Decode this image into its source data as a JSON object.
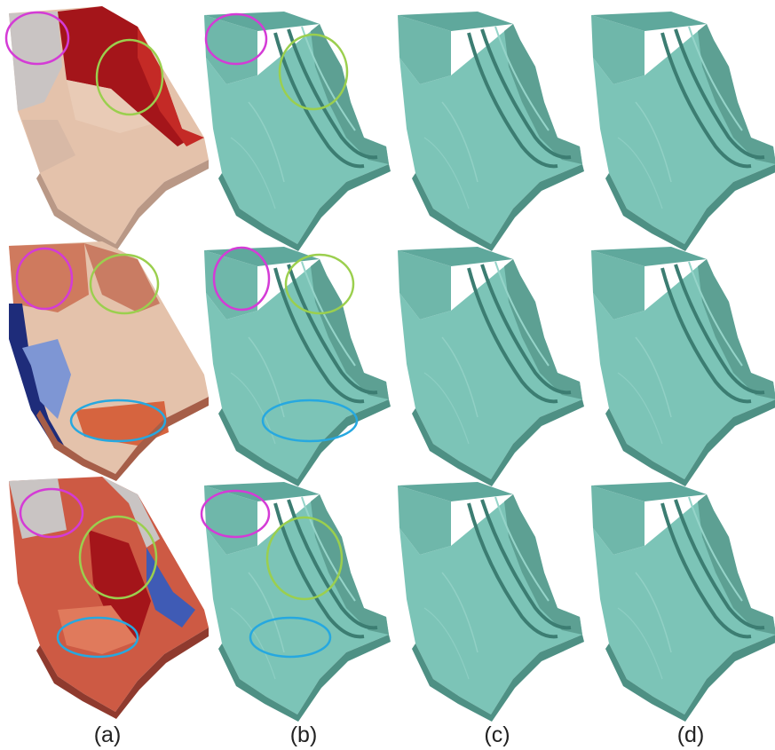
{
  "labels": [
    "(a)",
    "(b)",
    "(c)",
    "(d)"
  ],
  "colors": {
    "mesh": "#74bdb0",
    "mesh_dark": "#4d9488",
    "mesh_light": "#a8dcd3",
    "red_dark": "#a4151a",
    "red_mid": "#cd5a44",
    "red_light": "#e08060",
    "peach": "#e4c2ab",
    "gray": "#c8c6c6",
    "blue_dark": "#1e2c7a",
    "blue_light": "#7e96d4",
    "circle_magenta": "#d43bd6",
    "circle_green": "#9bcf4e",
    "circle_cyan": "#26a8e0"
  }
}
